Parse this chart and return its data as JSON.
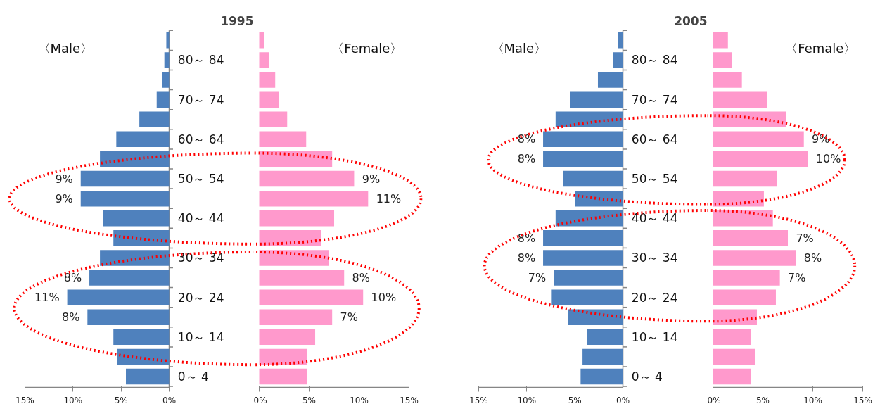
{
  "chart_data": [
    {
      "type": "bar",
      "orientation": "horizontal",
      "title": "1995",
      "categories": [
        null,
        "80～ 84",
        null,
        "70～ 74",
        null,
        "60～ 64",
        null,
        "50～ 54",
        null,
        "40～ 44",
        null,
        "30～ 34",
        null,
        "20～ 24",
        null,
        "10～ 14",
        null,
        "0～ 4"
      ],
      "series": [
        {
          "name": "〈Male〉",
          "color": "#4f81bd",
          "values": [
            0.3,
            0.5,
            0.7,
            1.3,
            3.1,
            5.5,
            7.2,
            9.2,
            9.2,
            6.9,
            5.8,
            7.2,
            8.3,
            10.6,
            8.5,
            5.8,
            5.4,
            4.5
          ],
          "value_labels": [
            null,
            null,
            null,
            null,
            null,
            null,
            null,
            "9%",
            "9%",
            null,
            null,
            null,
            "8%",
            "11%",
            "8%",
            null,
            null,
            null
          ]
        }
      ],
      "xlim": [
        15,
        0
      ],
      "xticks": [
        {
          "value": 15,
          "label": "15%"
        },
        {
          "value": 10,
          "label": "10%"
        },
        {
          "value": 5,
          "label": "5%"
        },
        {
          "value": 0,
          "label": "0%"
        }
      ]
    },
    {
      "type": "bar",
      "orientation": "horizontal",
      "categories": [
        null,
        null,
        null,
        null,
        null,
        null,
        null,
        null,
        null,
        null,
        null,
        null,
        null,
        null,
        null,
        null,
        null,
        null
      ],
      "series": [
        {
          "name": "〈Female〉",
          "color": "#ff99cc",
          "values": [
            0.5,
            1.0,
            1.6,
            2.0,
            2.8,
            4.7,
            7.3,
            9.5,
            10.9,
            7.5,
            6.2,
            7.0,
            8.5,
            10.4,
            7.3,
            5.6,
            4.8,
            4.8
          ],
          "value_labels": [
            null,
            null,
            null,
            null,
            null,
            null,
            null,
            "9%",
            "11%",
            null,
            null,
            null,
            "8%",
            "10%",
            "7%",
            null,
            null,
            null
          ]
        }
      ],
      "xlim": [
        0,
        15
      ],
      "xticks": [
        {
          "value": 0,
          "label": "0%"
        },
        {
          "value": 5,
          "label": "5%"
        },
        {
          "value": 10,
          "label": "10%"
        },
        {
          "value": 15,
          "label": "15%"
        }
      ],
      "tick_labels": "x"
    },
    {
      "type": "bar",
      "orientation": "horizontal",
      "title": "2005",
      "categories": [
        null,
        "80～ 84",
        null,
        "70～ 74",
        null,
        "60～ 64",
        null,
        "50～ 54",
        null,
        "40～ 44",
        null,
        "30～ 34",
        null,
        "20～ 24",
        null,
        "10～ 14",
        null,
        "0～ 4"
      ],
      "series": [
        {
          "name": "〈Male〉",
          "color": "#4f81bd",
          "values": [
            0.5,
            1.0,
            2.6,
            5.5,
            7.0,
            8.3,
            8.3,
            6.2,
            5.0,
            7.0,
            8.3,
            8.3,
            7.2,
            7.4,
            5.7,
            3.7,
            4.2,
            4.4
          ],
          "value_labels": [
            null,
            null,
            null,
            null,
            null,
            "8%",
            "8%",
            null,
            null,
            null,
            "8%",
            "8%",
            "7%",
            null,
            null,
            null,
            null,
            null
          ]
        }
      ],
      "xlim": [
        15,
        0
      ],
      "xticks": [
        {
          "value": 15,
          "label": "15%"
        },
        {
          "value": 10,
          "label": "10%"
        },
        {
          "value": 5,
          "label": "5%"
        },
        {
          "value": 0,
          "label": "0%"
        }
      ]
    },
    {
      "type": "bar",
      "orientation": "horizontal",
      "categories": [
        null,
        null,
        null,
        null,
        null,
        null,
        null,
        null,
        null,
        null,
        null,
        null,
        null,
        null,
        null,
        null,
        null,
        null
      ],
      "series": [
        {
          "name": "〈Female〉",
          "color": "#ff99cc",
          "values": [
            1.5,
            1.9,
            2.9,
            5.4,
            7.3,
            9.1,
            9.5,
            6.4,
            5.1,
            6.0,
            7.5,
            8.3,
            6.7,
            6.3,
            4.4,
            3.8,
            4.2,
            3.8
          ],
          "value_labels": [
            null,
            null,
            null,
            null,
            null,
            "9%",
            "10%",
            null,
            null,
            null,
            "7%",
            "8%",
            "7%",
            null,
            null,
            null,
            null,
            null
          ]
        }
      ],
      "xlim": [
        0,
        15
      ],
      "xticks": [
        {
          "value": 0,
          "label": "0%"
        },
        {
          "value": 5,
          "label": "5%"
        },
        {
          "value": 10,
          "label": "10%"
        },
        {
          "value": 15,
          "label": "15%"
        }
      ],
      "tick_labels": "x"
    }
  ]
}
